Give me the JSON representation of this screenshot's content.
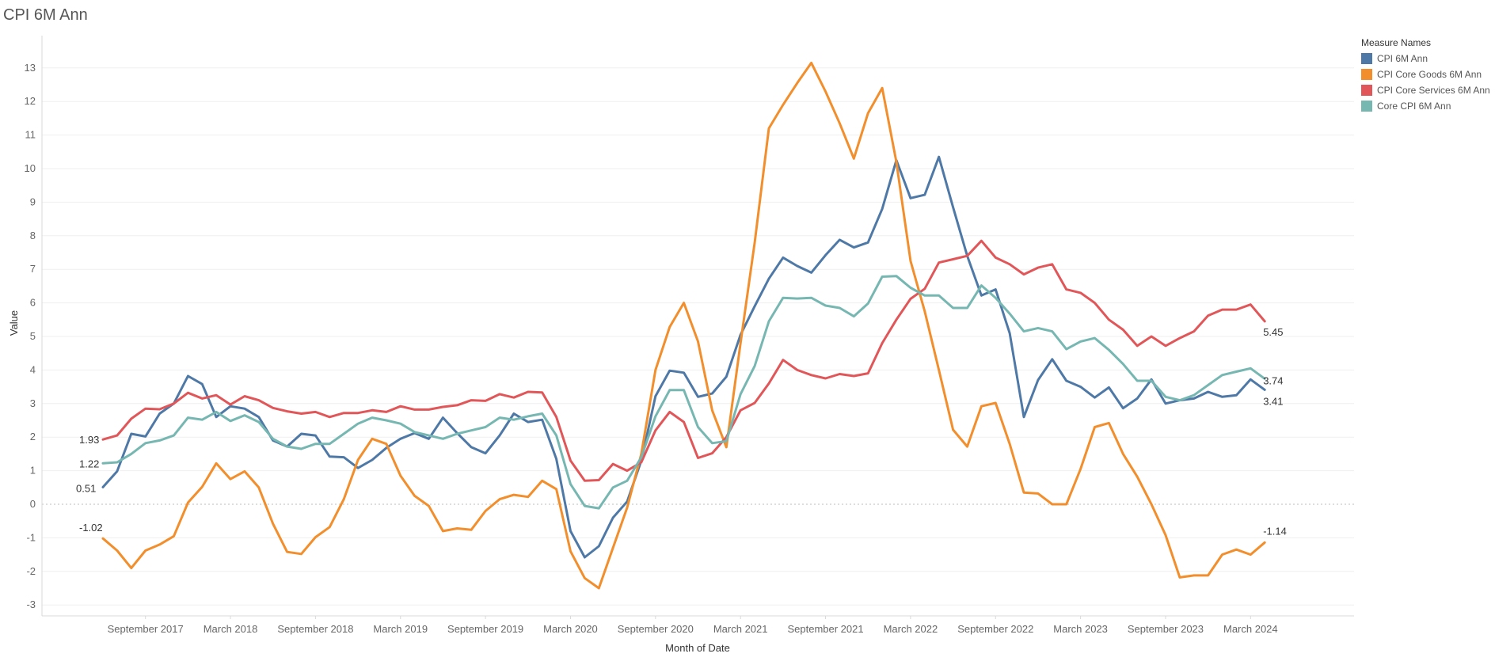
{
  "title": "CPI 6M Ann",
  "legend": {
    "title": "Measure Names",
    "items": [
      {
        "label": "CPI 6M Ann",
        "color": "#4e79a7"
      },
      {
        "label": "CPI Core Goods 6M Ann",
        "color": "#f28e2b"
      },
      {
        "label": "CPI Core Services 6M Ann",
        "color": "#e15759"
      },
      {
        "label": "Core CPI 6M Ann",
        "color": "#76b7b2"
      }
    ]
  },
  "chart_data": {
    "type": "line",
    "title": "CPI 6M Ann",
    "xlabel": "Month of Date",
    "ylabel": "Value",
    "ylim": [
      -3.3,
      13.6
    ],
    "yticks": [
      -3,
      -2,
      -1,
      0,
      1,
      2,
      3,
      4,
      5,
      6,
      7,
      8,
      9,
      10,
      11,
      12,
      13
    ],
    "x_start": "2017-06",
    "x_end": "2024-06",
    "x_tick_labels": [
      "September 2017",
      "March 2018",
      "September 2018",
      "March 2019",
      "September 2019",
      "March 2020",
      "September 2020",
      "March 2021",
      "September 2021",
      "March 2022",
      "September 2022",
      "March 2023",
      "September 2023",
      "March 2024"
    ],
    "x_tick_dates": [
      "2017-09",
      "2018-03",
      "2018-09",
      "2019-03",
      "2019-09",
      "2020-03",
      "2020-09",
      "2021-03",
      "2021-09",
      "2022-03",
      "2022-09",
      "2023-03",
      "2023-09",
      "2024-03"
    ],
    "grid": true,
    "zero_line": "dotted",
    "legend_position": "top-right",
    "series": [
      {
        "name": "CPI 6M Ann",
        "color": "#4e79a7",
        "start_label": "0.51",
        "end_label": "3.41",
        "values": [
          0.51,
          0.98,
          2.1,
          2.02,
          2.7,
          3.0,
          3.82,
          3.58,
          2.6,
          2.92,
          2.85,
          2.6,
          1.9,
          1.72,
          2.1,
          2.05,
          1.42,
          1.4,
          1.08,
          1.32,
          1.68,
          1.95,
          2.12,
          1.95,
          2.58,
          2.12,
          1.7,
          1.52,
          2.05,
          2.7,
          2.45,
          2.52,
          1.35,
          -0.8,
          -1.58,
          -1.25,
          -0.4,
          0.08,
          1.3,
          3.22,
          3.98,
          3.92,
          3.2,
          3.3,
          3.8,
          5.05,
          5.9,
          6.72,
          7.35,
          7.1,
          6.9,
          7.42,
          7.88,
          7.65,
          7.8,
          8.8,
          10.25,
          9.12,
          9.22,
          10.35,
          8.85,
          7.4,
          6.22,
          6.4,
          5.1,
          2.6,
          3.7,
          4.32,
          3.68,
          3.5,
          3.18,
          3.48,
          2.86,
          3.15,
          3.72,
          3.0,
          3.1,
          3.15,
          3.35,
          3.2,
          3.25,
          3.72,
          3.41
        ]
      },
      {
        "name": "CPI Core Goods 6M Ann",
        "color": "#f28e2b",
        "start_label": "-1.02",
        "end_label": "-1.14",
        "values": [
          -1.02,
          -1.38,
          -1.9,
          -1.38,
          -1.2,
          -0.95,
          0.05,
          0.52,
          1.22,
          0.75,
          0.98,
          0.5,
          -0.58,
          -1.42,
          -1.48,
          -0.98,
          -0.68,
          0.15,
          1.32,
          1.95,
          1.8,
          0.85,
          0.25,
          -0.05,
          -0.8,
          -0.72,
          -0.76,
          -0.2,
          0.15,
          0.28,
          0.22,
          0.7,
          0.45,
          -1.4,
          -2.2,
          -2.5,
          -1.3,
          -0.1,
          1.5,
          4.0,
          5.28,
          6.0,
          4.85,
          2.8,
          1.7,
          4.8,
          7.8,
          11.2,
          11.9,
          12.55,
          13.15,
          12.3,
          11.35,
          10.3,
          11.65,
          12.4,
          10.2,
          7.25,
          5.75,
          4.0,
          2.22,
          1.72,
          2.92,
          3.02,
          1.8,
          0.35,
          0.32,
          0.0,
          0.0,
          1.05,
          2.3,
          2.42,
          1.5,
          0.82,
          0.0,
          -0.92,
          -2.18,
          -2.12,
          -2.12,
          -1.5,
          -1.35,
          -1.5,
          -1.14
        ]
      },
      {
        "name": "CPI Core Services 6M Ann",
        "color": "#e15759",
        "start_label": "1.93",
        "end_label": "5.45",
        "values": [
          1.93,
          2.05,
          2.55,
          2.85,
          2.83,
          3.0,
          3.32,
          3.15,
          3.25,
          2.97,
          3.22,
          3.1,
          2.87,
          2.77,
          2.7,
          2.75,
          2.6,
          2.72,
          2.72,
          2.8,
          2.75,
          2.92,
          2.82,
          2.82,
          2.9,
          2.95,
          3.1,
          3.08,
          3.28,
          3.18,
          3.35,
          3.33,
          2.6,
          1.3,
          0.7,
          0.72,
          1.2,
          1.0,
          1.25,
          2.2,
          2.75,
          2.45,
          1.38,
          1.52,
          2.0,
          2.8,
          3.02,
          3.6,
          4.3,
          4.0,
          3.85,
          3.75,
          3.88,
          3.82,
          3.9,
          4.8,
          5.5,
          6.12,
          6.42,
          7.2,
          7.3,
          7.4,
          7.85,
          7.35,
          7.15,
          6.85,
          7.05,
          7.15,
          6.4,
          6.3,
          6.0,
          5.5,
          5.2,
          4.72,
          5.0,
          4.72,
          4.95,
          5.15,
          5.62,
          5.8,
          5.8,
          5.95,
          5.45
        ]
      },
      {
        "name": "Core CPI 6M Ann",
        "color": "#76b7b2",
        "start_label": "1.22",
        "end_label": "3.74",
        "values": [
          1.22,
          1.25,
          1.5,
          1.82,
          1.9,
          2.05,
          2.58,
          2.52,
          2.75,
          2.48,
          2.65,
          2.45,
          1.95,
          1.72,
          1.65,
          1.8,
          1.8,
          2.1,
          2.4,
          2.58,
          2.5,
          2.4,
          2.15,
          2.05,
          1.95,
          2.1,
          2.2,
          2.3,
          2.58,
          2.52,
          2.62,
          2.7,
          2.05,
          0.6,
          -0.05,
          -0.12,
          0.5,
          0.7,
          1.4,
          2.62,
          3.4,
          3.4,
          2.3,
          1.82,
          1.88,
          3.28,
          4.12,
          5.45,
          6.15,
          6.13,
          6.15,
          5.92,
          5.85,
          5.6,
          5.98,
          6.78,
          6.8,
          6.45,
          6.22,
          6.22,
          5.85,
          5.85,
          6.52,
          6.15,
          5.68,
          5.15,
          5.25,
          5.15,
          4.62,
          4.85,
          4.95,
          4.6,
          4.18,
          3.68,
          3.68,
          3.2,
          3.1,
          3.25,
          3.55,
          3.85,
          3.95,
          4.05,
          3.74
        ]
      }
    ]
  }
}
